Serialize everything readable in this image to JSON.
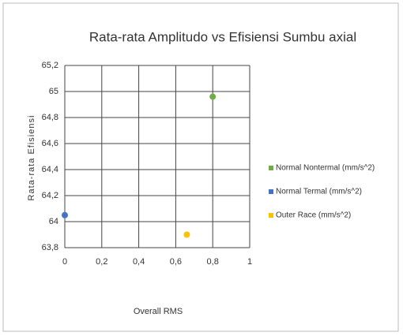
{
  "chart_data": {
    "type": "scatter",
    "title": "Rata-rata Amplitudo vs Efisiensi Sumbu axial",
    "xlabel": "Overall RMS",
    "ylabel": "Rata-rata Efisiensi",
    "series": [
      {
        "name": "Normal Nontermal (mm/s^2)",
        "color": "#70ad47",
        "x": [
          0.8
        ],
        "values": [
          64.96
        ]
      },
      {
        "name": "Normal Termal (mm/s^2)",
        "color": "#4472c4",
        "x": [
          0
        ],
        "values": [
          64.05
        ]
      },
      {
        "name": "Outer Race (mm/s^2)",
        "color": "#ffc000",
        "x": [
          0.66
        ],
        "values": [
          63.9
        ]
      }
    ],
    "xlim": [
      0,
      1
    ],
    "xticks": [
      0,
      {
        "value": 0.2,
        "label": "0,2"
      },
      {
        "value": 0.4,
        "label": "0,4"
      },
      {
        "value": 0.6,
        "label": "0,6"
      },
      {
        "value": 0.8,
        "label": "0,8"
      },
      1
    ],
    "ylim": [
      63.8,
      65.2
    ],
    "yticks": [
      {
        "value": 63.8,
        "label": "63,8"
      },
      64,
      {
        "value": 64.2,
        "label": "64,2"
      },
      {
        "value": 64.4,
        "label": "64,4"
      },
      {
        "value": 64.6,
        "label": "64,6"
      },
      {
        "value": 64.8,
        "label": "64,8"
      },
      65,
      {
        "value": 65.2,
        "label": "65,2"
      }
    ],
    "grid": true,
    "legend": "right"
  }
}
